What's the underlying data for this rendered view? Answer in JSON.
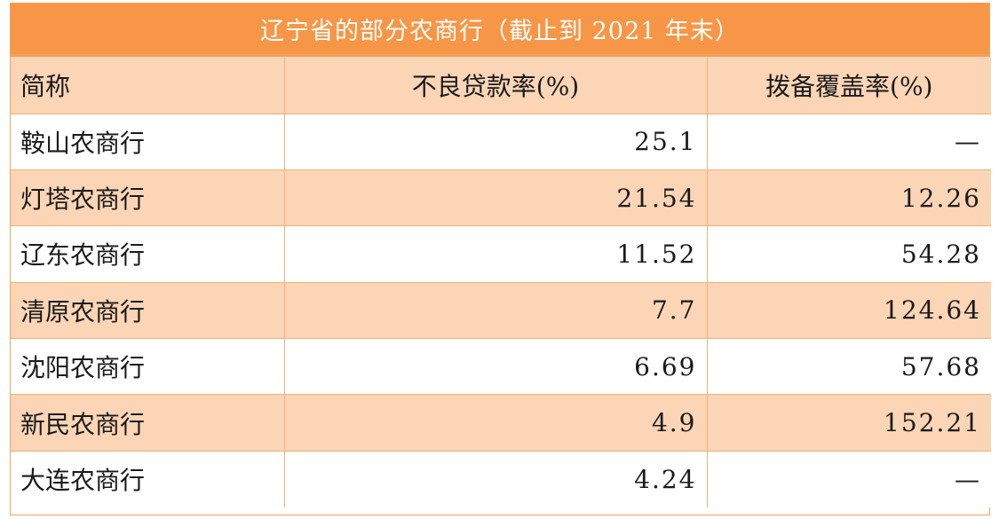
{
  "chart_data": {
    "type": "table",
    "title": "辽宁省的部分农商行（截止到 2021 年末）",
    "columns": [
      "简称",
      "不良贷款率(%)",
      "拨备覆盖率(%)"
    ],
    "rows": [
      {
        "name": "鞍山农商行",
        "npl_ratio": "25.1",
        "provision_coverage": "—"
      },
      {
        "name": "灯塔农商行",
        "npl_ratio": "21.54",
        "provision_coverage": "12.26"
      },
      {
        "name": "辽东农商行",
        "npl_ratio": "11.52",
        "provision_coverage": "54.28"
      },
      {
        "name": "清原农商行",
        "npl_ratio": "7.7",
        "provision_coverage": "124.64"
      },
      {
        "name": "沈阳农商行",
        "npl_ratio": "6.69",
        "provision_coverage": "57.68"
      },
      {
        "name": "新民农商行",
        "npl_ratio": "4.9",
        "provision_coverage": "152.21"
      },
      {
        "name": "大连农商行",
        "npl_ratio": "4.24",
        "provision_coverage": "—"
      }
    ]
  },
  "colors": {
    "header_bar": "#f79646",
    "row_shade": "#fbd5b5",
    "border": "#f2b07a"
  }
}
